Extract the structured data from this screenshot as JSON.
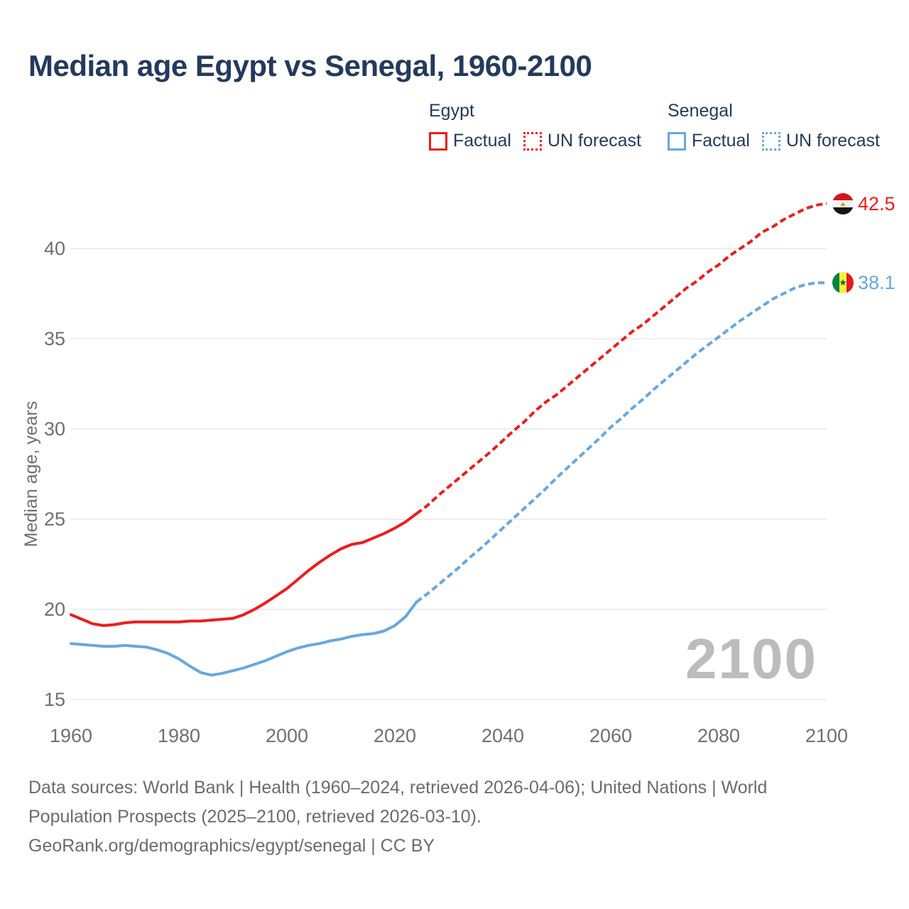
{
  "title": "Median age Egypt vs Senegal, 1960-2100",
  "legend": {
    "egypt_label": "Egypt",
    "senegal_label": "Senegal",
    "factual_label": "Factual",
    "forecast_label": "UN forecast"
  },
  "colors": {
    "egypt": "#ed1c1c",
    "senegal": "#66a8e0",
    "title_text": "#233a5e",
    "axis_text": "#6f6f6f",
    "grid": "#e8e8e8",
    "watermark": "#bcbcbc",
    "footer_text": "#6b6b6b"
  },
  "icons": {
    "egypt_flag": "egypt-flag-icon",
    "senegal_flag": "senegal-flag-icon"
  },
  "watermark": "2100",
  "end_labels": {
    "egypt": "42.5",
    "senegal": "38.1"
  },
  "footer": {
    "line1": "Data sources: World Bank | Health (1960–2024, retrieved 2026-04-06); United Nations | World",
    "line2": "Population Prospects (2025–2100, retrieved 2026-03-10).",
    "line3": "GeoRank.org/demographics/egypt/senegal | CC BY"
  },
  "chart_data": {
    "type": "line",
    "title": "Median age Egypt vs Senegal, 1960-2100",
    "xlabel": "",
    "ylabel": "Median age, years",
    "xlim": [
      1960,
      2100
    ],
    "ylim": [
      15,
      43.5
    ],
    "xticks": [
      1960,
      1980,
      2000,
      2020,
      2040,
      2060,
      2080,
      2100
    ],
    "yticks": [
      15,
      20,
      25,
      30,
      35,
      40
    ],
    "grid": "horizontal",
    "legend_position": "top-right",
    "end_values": {
      "egypt": 42.5,
      "senegal": 38.1
    },
    "series": [
      {
        "name": "Egypt Factual",
        "color_key": "egypt",
        "style": "solid",
        "points": [
          [
            1960,
            19.7
          ],
          [
            1962,
            19.45
          ],
          [
            1964,
            19.2
          ],
          [
            1966,
            19.1
          ],
          [
            1968,
            19.15
          ],
          [
            1970,
            19.25
          ],
          [
            1972,
            19.3
          ],
          [
            1974,
            19.3
          ],
          [
            1976,
            19.3
          ],
          [
            1978,
            19.3
          ],
          [
            1980,
            19.3
          ],
          [
            1982,
            19.35
          ],
          [
            1984,
            19.35
          ],
          [
            1986,
            19.4
          ],
          [
            1988,
            19.45
          ],
          [
            1990,
            19.5
          ],
          [
            1992,
            19.7
          ],
          [
            1994,
            20.0
          ],
          [
            1996,
            20.35
          ],
          [
            1998,
            20.75
          ],
          [
            2000,
            21.15
          ],
          [
            2002,
            21.65
          ],
          [
            2004,
            22.15
          ],
          [
            2006,
            22.6
          ],
          [
            2008,
            23.0
          ],
          [
            2010,
            23.35
          ],
          [
            2012,
            23.6
          ],
          [
            2014,
            23.7
          ],
          [
            2016,
            23.95
          ],
          [
            2018,
            24.2
          ],
          [
            2020,
            24.5
          ],
          [
            2022,
            24.85
          ],
          [
            2024,
            25.3
          ]
        ]
      },
      {
        "name": "Egypt UN forecast",
        "color_key": "egypt",
        "style": "dashed",
        "points": [
          [
            2024,
            25.3
          ],
          [
            2026,
            25.75
          ],
          [
            2028,
            26.3
          ],
          [
            2030,
            26.8
          ],
          [
            2032,
            27.3
          ],
          [
            2034,
            27.8
          ],
          [
            2036,
            28.3
          ],
          [
            2038,
            28.8
          ],
          [
            2040,
            29.35
          ],
          [
            2042,
            29.9
          ],
          [
            2044,
            30.4
          ],
          [
            2046,
            31.0
          ],
          [
            2048,
            31.5
          ],
          [
            2050,
            31.9
          ],
          [
            2052,
            32.4
          ],
          [
            2054,
            32.9
          ],
          [
            2056,
            33.4
          ],
          [
            2058,
            33.9
          ],
          [
            2060,
            34.4
          ],
          [
            2062,
            34.9
          ],
          [
            2064,
            35.4
          ],
          [
            2066,
            35.8
          ],
          [
            2068,
            36.3
          ],
          [
            2070,
            36.8
          ],
          [
            2072,
            37.3
          ],
          [
            2074,
            37.8
          ],
          [
            2076,
            38.2
          ],
          [
            2078,
            38.7
          ],
          [
            2080,
            39.1
          ],
          [
            2082,
            39.6
          ],
          [
            2084,
            40.0
          ],
          [
            2086,
            40.4
          ],
          [
            2088,
            40.9
          ],
          [
            2090,
            41.2
          ],
          [
            2092,
            41.6
          ],
          [
            2094,
            41.9
          ],
          [
            2096,
            42.2
          ],
          [
            2098,
            42.4
          ],
          [
            2100,
            42.5
          ]
        ]
      },
      {
        "name": "Senegal Factual",
        "color_key": "senegal",
        "style": "solid",
        "points": [
          [
            1960,
            18.1
          ],
          [
            1962,
            18.05
          ],
          [
            1964,
            18.0
          ],
          [
            1966,
            17.95
          ],
          [
            1968,
            17.95
          ],
          [
            1970,
            18.0
          ],
          [
            1972,
            17.95
          ],
          [
            1974,
            17.9
          ],
          [
            1976,
            17.75
          ],
          [
            1978,
            17.55
          ],
          [
            1980,
            17.25
          ],
          [
            1982,
            16.85
          ],
          [
            1984,
            16.5
          ],
          [
            1986,
            16.35
          ],
          [
            1988,
            16.45
          ],
          [
            1990,
            16.6
          ],
          [
            1992,
            16.75
          ],
          [
            1994,
            16.95
          ],
          [
            1996,
            17.15
          ],
          [
            1998,
            17.4
          ],
          [
            2000,
            17.65
          ],
          [
            2002,
            17.85
          ],
          [
            2004,
            18.0
          ],
          [
            2006,
            18.1
          ],
          [
            2008,
            18.25
          ],
          [
            2010,
            18.35
          ],
          [
            2012,
            18.5
          ],
          [
            2014,
            18.6
          ],
          [
            2016,
            18.65
          ],
          [
            2018,
            18.8
          ],
          [
            2020,
            19.1
          ],
          [
            2022,
            19.6
          ],
          [
            2024,
            20.4
          ]
        ]
      },
      {
        "name": "Senegal UN forecast",
        "color_key": "senegal",
        "style": "dashed",
        "points": [
          [
            2024,
            20.4
          ],
          [
            2026,
            20.85
          ],
          [
            2028,
            21.35
          ],
          [
            2030,
            21.85
          ],
          [
            2032,
            22.35
          ],
          [
            2034,
            22.9
          ],
          [
            2036,
            23.4
          ],
          [
            2038,
            23.95
          ],
          [
            2040,
            24.5
          ],
          [
            2042,
            25.05
          ],
          [
            2044,
            25.6
          ],
          [
            2046,
            26.15
          ],
          [
            2048,
            26.7
          ],
          [
            2050,
            27.3
          ],
          [
            2052,
            27.85
          ],
          [
            2054,
            28.4
          ],
          [
            2056,
            28.95
          ],
          [
            2058,
            29.5
          ],
          [
            2060,
            30.1
          ],
          [
            2062,
            30.6
          ],
          [
            2064,
            31.15
          ],
          [
            2066,
            31.65
          ],
          [
            2068,
            32.2
          ],
          [
            2070,
            32.7
          ],
          [
            2072,
            33.2
          ],
          [
            2074,
            33.7
          ],
          [
            2076,
            34.2
          ],
          [
            2078,
            34.65
          ],
          [
            2080,
            35.1
          ],
          [
            2082,
            35.55
          ],
          [
            2084,
            36.0
          ],
          [
            2086,
            36.4
          ],
          [
            2088,
            36.8
          ],
          [
            2090,
            37.2
          ],
          [
            2092,
            37.5
          ],
          [
            2094,
            37.8
          ],
          [
            2096,
            38.0
          ],
          [
            2098,
            38.1
          ],
          [
            2100,
            38.1
          ]
        ]
      }
    ]
  }
}
